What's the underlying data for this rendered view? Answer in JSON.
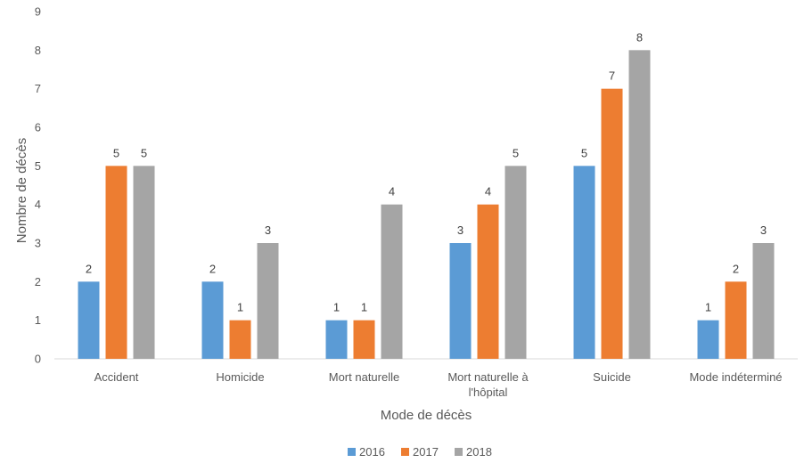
{
  "chart_data": {
    "type": "bar",
    "title": "",
    "xlabel": "Mode de décès",
    "ylabel": "Nombre de décès",
    "ylim": [
      0,
      9
    ],
    "yticks": [
      0,
      1,
      2,
      3,
      4,
      5,
      6,
      7,
      8,
      9
    ],
    "grid": false,
    "legend_position": "bottom",
    "categories": [
      [
        "Accident"
      ],
      [
        "Homicide"
      ],
      [
        "Mort naturelle"
      ],
      [
        "Mort naturelle à",
        "l'hôpital"
      ],
      [
        "Suicide"
      ],
      [
        "Mode indéterminé"
      ]
    ],
    "series": [
      {
        "name": "2016",
        "color": "#5B9BD5",
        "values": [
          2,
          2,
          1,
          3,
          5,
          1
        ]
      },
      {
        "name": "2017",
        "color": "#ED7D31",
        "values": [
          5,
          1,
          1,
          4,
          7,
          2
        ]
      },
      {
        "name": "2018",
        "color": "#A5A5A5",
        "values": [
          5,
          3,
          4,
          5,
          8,
          3
        ]
      }
    ]
  }
}
